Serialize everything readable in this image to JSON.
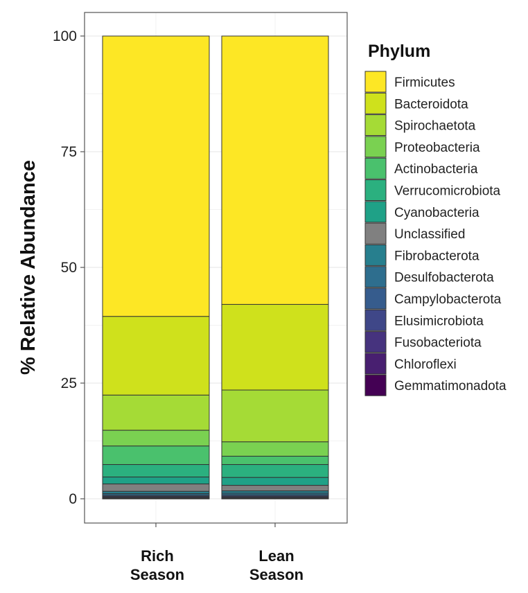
{
  "chart_data": {
    "type": "bar",
    "stacked": true,
    "title": "",
    "xlabel": "",
    "ylabel": "% Relative Abundance",
    "ylim": [
      0,
      105
    ],
    "yticks": [
      0,
      25,
      50,
      75,
      100
    ],
    "grid": true,
    "legend": {
      "title": "Phylum",
      "position": "right"
    },
    "categories": [
      {
        "id": "rich",
        "lines": [
          "Rich",
          "Season"
        ]
      },
      {
        "id": "lean",
        "lines": [
          "Lean",
          "Season"
        ]
      }
    ],
    "series": [
      {
        "name": "Firmicutes",
        "color": "#FDE725",
        "values": [
          60.6,
          58.0
        ]
      },
      {
        "name": "Bacteroidota",
        "color": "#CFE11C",
        "values": [
          17.0,
          18.5
        ]
      },
      {
        "name": "Spirochaetota",
        "color": "#A5DB36",
        "values": [
          7.6,
          11.2
        ]
      },
      {
        "name": "Proteobacteria",
        "color": "#7AD151",
        "values": [
          3.4,
          3.1
        ]
      },
      {
        "name": "Actinobacteria",
        "color": "#4AC16D",
        "values": [
          4.0,
          1.8
        ]
      },
      {
        "name": "Verrucomicrobiota",
        "color": "#2BB07F",
        "values": [
          2.7,
          2.8
        ]
      },
      {
        "name": "Cyanobacteria",
        "color": "#1FA187",
        "values": [
          1.5,
          1.7
        ]
      },
      {
        "name": "Unclassified",
        "color": "#808080",
        "values": [
          1.6,
          1.2
        ]
      },
      {
        "name": "Fibrobacterota",
        "color": "#277F8E",
        "values": [
          0.5,
          0.5
        ]
      },
      {
        "name": "Desulfobacterota",
        "color": "#2E6E8E",
        "values": [
          0.35,
          0.4
        ]
      },
      {
        "name": "Campylobacterota",
        "color": "#365C8D",
        "values": [
          0.25,
          0.3
        ]
      },
      {
        "name": "Elusimicrobiota",
        "color": "#3F4788",
        "values": [
          0.2,
          0.2
        ]
      },
      {
        "name": "Fusobacteriota",
        "color": "#46337E",
        "values": [
          0.15,
          0.15
        ]
      },
      {
        "name": "Chloroflexi",
        "color": "#481F70",
        "values": [
          0.1,
          0.1
        ]
      },
      {
        "name": "Gemmatimonadota",
        "color": "#440154",
        "values": [
          0.05,
          0.05
        ]
      }
    ]
  }
}
